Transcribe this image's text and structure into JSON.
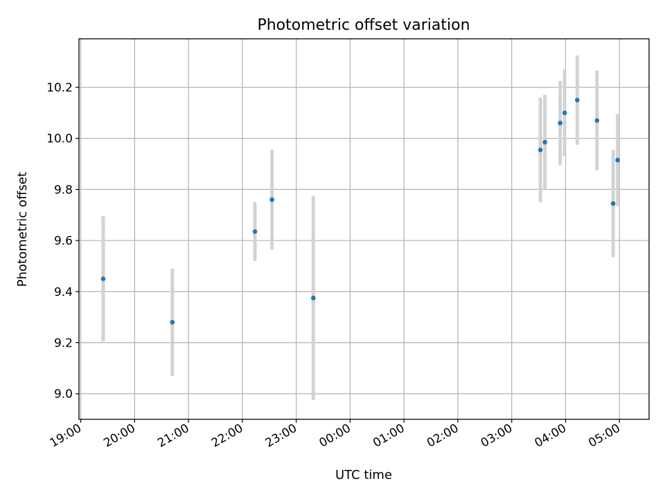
{
  "chart_data": {
    "type": "scatter",
    "title": "Photometric offset variation",
    "xlabel": "UTC time",
    "ylabel": "Photometric offset",
    "x_ticks": [
      "19:00",
      "20:00",
      "21:00",
      "22:00",
      "23:00",
      "00:00",
      "01:00",
      "02:00",
      "03:00",
      "04:00",
      "05:00"
    ],
    "x_range": [
      "18:58",
      "05:33"
    ],
    "y_ticks": [
      "9.0",
      "9.2",
      "9.4",
      "9.6",
      "9.8",
      "10.0",
      "10.2"
    ],
    "ylim": [
      8.9,
      10.39
    ],
    "grid": true,
    "legend": "none",
    "points": [
      {
        "x": "19:25",
        "y": 9.45,
        "err": 0.245
      },
      {
        "x": "20:42",
        "y": 9.28,
        "err": 0.21
      },
      {
        "x": "22:14",
        "y": 9.635,
        "err": 0.115
      },
      {
        "x": "22:33",
        "y": 9.76,
        "err": 0.195
      },
      {
        "x": "23:19",
        "y": 9.375,
        "err": 0.4
      },
      {
        "x": "03:32",
        "y": 9.955,
        "err": 0.205
      },
      {
        "x": "03:37",
        "y": 9.985,
        "err": 0.185
      },
      {
        "x": "03:54",
        "y": 10.06,
        "err": 0.165
      },
      {
        "x": "03:59",
        "y": 10.1,
        "err": 0.17
      },
      {
        "x": "04:13",
        "y": 10.15,
        "err": 0.175
      },
      {
        "x": "04:35",
        "y": 10.07,
        "err": 0.195
      },
      {
        "x": "04:53",
        "y": 9.745,
        "err": 0.21
      },
      {
        "x": "04:58",
        "y": 9.915,
        "err": 0.18
      }
    ],
    "colors": {
      "points": "#1f77b4",
      "error_bars": "#d3d3d3",
      "grid": "#b0b0b0"
    }
  }
}
